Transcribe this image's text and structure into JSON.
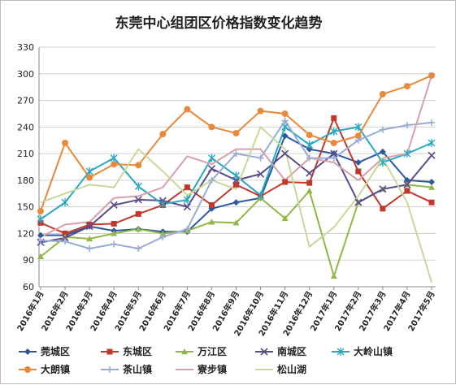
{
  "chart_data": {
    "type": "line",
    "title": "东莞中心组团区价格指数变化趋势",
    "xlabel": "",
    "ylabel": "",
    "ylim": [
      60,
      330
    ],
    "yticks": [
      60,
      90,
      120,
      150,
      180,
      210,
      240,
      270,
      300,
      330
    ],
    "grid": true,
    "legend_position": "bottom",
    "categories": [
      "2016年1月",
      "2016年2月",
      "2016年3月",
      "2016年4月",
      "2016年5月",
      "2016年6月",
      "2016年7月",
      "2016年8月",
      "2016年9月",
      "2016年10月",
      "2016年11月",
      "2016年12月",
      "2017年1月",
      "2017年2月",
      "2017年3月",
      "2017年4月",
      "2017年5月"
    ],
    "series": [
      {
        "name": "莞城区",
        "color": "#2e5a9c",
        "marker": "diamond",
        "values": [
          118,
          118,
          128,
          123,
          125,
          122,
          122,
          148,
          155,
          160,
          230,
          215,
          210,
          200,
          212,
          180,
          178
        ]
      },
      {
        "name": "东城区",
        "color": "#c0392b",
        "marker": "square",
        "values": [
          132,
          120,
          130,
          131,
          142,
          152,
          172,
          152,
          175,
          162,
          178,
          177,
          250,
          190,
          148,
          168,
          155
        ]
      },
      {
        "name": "万江区",
        "color": "#8fb845",
        "marker": "triangle",
        "values": [
          94,
          116,
          114,
          120,
          125,
          120,
          123,
          133,
          132,
          160,
          137,
          168,
          72,
          155,
          170,
          175,
          172
        ]
      },
      {
        "name": "南城区",
        "color": "#5b4a8a",
        "marker": "x",
        "values": [
          110,
          115,
          128,
          152,
          158,
          157,
          150,
          193,
          180,
          187,
          210,
          188,
          210,
          155,
          170,
          175,
          208
        ]
      },
      {
        "name": "大岭山镇",
        "color": "#2aa8bf",
        "marker": "asterisk",
        "values": [
          136,
          155,
          190,
          205,
          173,
          153,
          158,
          205,
          185,
          163,
          240,
          220,
          235,
          240,
          200,
          210,
          222
        ]
      },
      {
        "name": "大朗镇",
        "color": "#e8893a",
        "marker": "circle",
        "values": [
          145,
          222,
          183,
          198,
          197,
          232,
          260,
          240,
          233,
          258,
          255,
          231,
          222,
          230,
          277,
          286,
          298
        ]
      },
      {
        "name": "茶山镇",
        "color": "#98acd4",
        "marker": "plus",
        "values": [
          112,
          111,
          103,
          108,
          103,
          116,
          125,
          180,
          210,
          205,
          247,
          205,
          205,
          225,
          237,
          242,
          245
        ]
      },
      {
        "name": "寮步镇",
        "color": "#d9a0aa",
        "marker": "none",
        "values": [
          116,
          130,
          133,
          160,
          162,
          172,
          207,
          198,
          215,
          215,
          180,
          205,
          200,
          180,
          205,
          210,
          298
        ]
      },
      {
        "name": "松山湖",
        "color": "#c6d99a",
        "marker": "none",
        "values": [
          155,
          165,
          175,
          172,
          215,
          190,
          163,
          180,
          170,
          240,
          215,
          105,
          127,
          162,
          205,
          155,
          65
        ]
      }
    ]
  }
}
